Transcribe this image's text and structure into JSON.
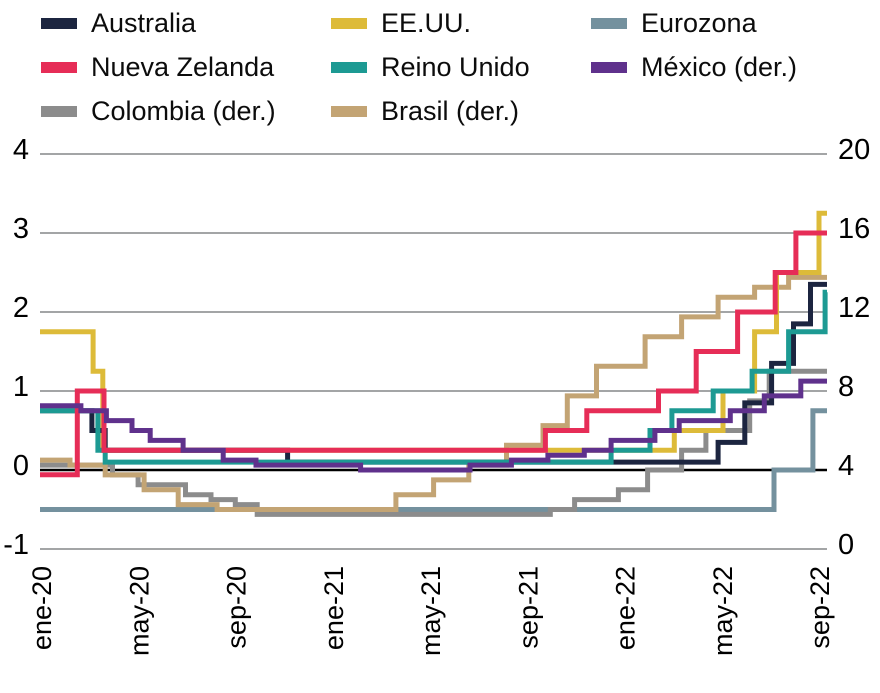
{
  "legend": {
    "items": [
      {
        "label": "Australia",
        "color": "#1c2540"
      },
      {
        "label": "EE.UU.",
        "color": "#ddbb39"
      },
      {
        "label": "Eurozona",
        "color": "#74919e"
      },
      {
        "label": "Nueva Zelanda",
        "color": "#e62d57"
      },
      {
        "label": "Reino Unido",
        "color": "#1d9a93"
      },
      {
        "label": "México (der.)",
        "color": "#5f318c"
      },
      {
        "label": "Colombia (der.)",
        "color": "#8c8c8c"
      },
      {
        "label": "Brasil (der.)",
        "color": "#c3a474"
      }
    ]
  },
  "chart_data": {
    "type": "line",
    "step": "after",
    "title": "",
    "xlabel": "",
    "ylabel_left": "",
    "ylabel_right": "",
    "x_unit": "months since ene-20",
    "x_ticks": [
      {
        "label": "ene-20",
        "t": 0
      },
      {
        "label": "may-20",
        "t": 4
      },
      {
        "label": "sep-20",
        "t": 8
      },
      {
        "label": "ene-21",
        "t": 12
      },
      {
        "label": "may-21",
        "t": 16
      },
      {
        "label": "sep-21",
        "t": 20
      },
      {
        "label": "ene-22",
        "t": 24
      },
      {
        "label": "may-22",
        "t": 28
      },
      {
        "label": "sep-22",
        "t": 32
      }
    ],
    "left_axis": {
      "ticks": [
        4,
        3,
        2,
        1,
        0,
        -1
      ],
      "range": [
        -1,
        4
      ]
    },
    "right_axis": {
      "ticks": [
        20,
        16,
        12,
        8,
        4,
        0
      ],
      "range": [
        0,
        20
      ]
    },
    "grid": "horizontal",
    "grid_color": "#96989a",
    "zero_line_color": "#000000",
    "legend_position": "top",
    "series": [
      {
        "id": "eurozona",
        "name": "Eurozona",
        "axis": "left",
        "color": "#74919e",
        "points": [
          [
            -0.1,
            -0.5
          ],
          [
            30.1,
            0
          ],
          [
            31.7,
            0.75
          ]
        ]
      },
      {
        "id": "colombia",
        "name": "Colombia (der.)",
        "axis": "right",
        "color": "#8c8c8c",
        "points": [
          [
            -0.1,
            4.25
          ],
          [
            2.9,
            3.75
          ],
          [
            3.95,
            3.25
          ],
          [
            5.9,
            2.75
          ],
          [
            6.95,
            2.5
          ],
          [
            7.95,
            2.25
          ],
          [
            8.85,
            1.75
          ],
          [
            20.9,
            2.0
          ],
          [
            21.9,
            2.5
          ],
          [
            23.7,
            3.0
          ],
          [
            24.9,
            4.0
          ],
          [
            26.3,
            5.0
          ],
          [
            27.3,
            6.0
          ],
          [
            29.1,
            7.5
          ],
          [
            29.9,
            9.0
          ]
        ]
      },
      {
        "id": "brasil",
        "name": "Brasil (der.)",
        "axis": "right",
        "color": "#c3a474",
        "points": [
          [
            -0.1,
            4.5
          ],
          [
            1.15,
            4.25
          ],
          [
            2.6,
            3.75
          ],
          [
            4.2,
            3.0
          ],
          [
            5.6,
            2.25
          ],
          [
            7.2,
            2.0
          ],
          [
            14.55,
            2.75
          ],
          [
            16.1,
            3.5
          ],
          [
            17.55,
            4.25
          ],
          [
            19.1,
            5.25
          ],
          [
            20.6,
            6.25
          ],
          [
            21.6,
            7.75
          ],
          [
            22.8,
            9.25
          ],
          [
            24.8,
            10.75
          ],
          [
            26.3,
            11.75
          ],
          [
            27.8,
            12.75
          ],
          [
            29.3,
            13.25
          ],
          [
            30.7,
            13.75
          ]
        ]
      },
      {
        "id": "ee-uu",
        "name": "EE.UU.",
        "axis": "left",
        "color": "#ddbb39",
        "points": [
          [
            -0.1,
            1.75
          ],
          [
            2.1,
            1.25
          ],
          [
            2.5,
            0.25
          ],
          [
            26.0,
            0.5
          ],
          [
            28.0,
            1.0
          ],
          [
            29.3,
            1.75
          ],
          [
            30.2,
            2.5
          ],
          [
            31.95,
            3.25
          ]
        ]
      },
      {
        "id": "australia",
        "name": "Australia",
        "axis": "left",
        "color": "#1c2540",
        "points": [
          [
            -0.1,
            0.75
          ],
          [
            2.05,
            0.5
          ],
          [
            2.6,
            0.25
          ],
          [
            10.1,
            0.1
          ],
          [
            27.8,
            0.35
          ],
          [
            28.9,
            0.85
          ],
          [
            30.0,
            1.35
          ],
          [
            30.9,
            1.85
          ],
          [
            31.6,
            2.35
          ]
        ]
      },
      {
        "id": "reino-unido",
        "name": "Reino Unido",
        "axis": "left",
        "color": "#1d9a93",
        "points": [
          [
            -0.1,
            0.75
          ],
          [
            2.3,
            0.25
          ],
          [
            2.6,
            0.1
          ],
          [
            23.4,
            0.25
          ],
          [
            25.0,
            0.5
          ],
          [
            25.9,
            0.75
          ],
          [
            27.6,
            1.0
          ],
          [
            29.2,
            1.25
          ],
          [
            30.7,
            1.75
          ],
          [
            32.2,
            2.25
          ]
        ]
      },
      {
        "id": "nueva-zelanda",
        "name": "Nueva Zelanda",
        "axis": "left",
        "color": "#e62d57",
        "points": [
          [
            -0.1,
            -0.06
          ],
          [
            1.45,
            1.0
          ],
          [
            2.55,
            0.25
          ],
          [
            20.7,
            0.5
          ],
          [
            22.4,
            0.75
          ],
          [
            25.35,
            1.0
          ],
          [
            26.9,
            1.5
          ],
          [
            28.6,
            2.0
          ],
          [
            30.15,
            2.5
          ],
          [
            31.0,
            3.0
          ]
        ]
      },
      {
        "id": "mexico",
        "name": "México (der.)",
        "axis": "right",
        "color": "#5f318c",
        "points": [
          [
            -0.1,
            7.25
          ],
          [
            1.6,
            7.0
          ],
          [
            2.65,
            6.5
          ],
          [
            3.7,
            6.0
          ],
          [
            4.45,
            5.5
          ],
          [
            5.8,
            5.0
          ],
          [
            7.45,
            4.5
          ],
          [
            8.8,
            4.25
          ],
          [
            13.1,
            4.0
          ],
          [
            17.6,
            4.25
          ],
          [
            19.3,
            4.5
          ],
          [
            20.8,
            4.75
          ],
          [
            22.3,
            5.0
          ],
          [
            23.4,
            5.5
          ],
          [
            25.2,
            6.0
          ],
          [
            26.2,
            6.5
          ],
          [
            28.3,
            7.0
          ],
          [
            29.7,
            7.75
          ],
          [
            31.2,
            8.5
          ]
        ]
      }
    ]
  }
}
